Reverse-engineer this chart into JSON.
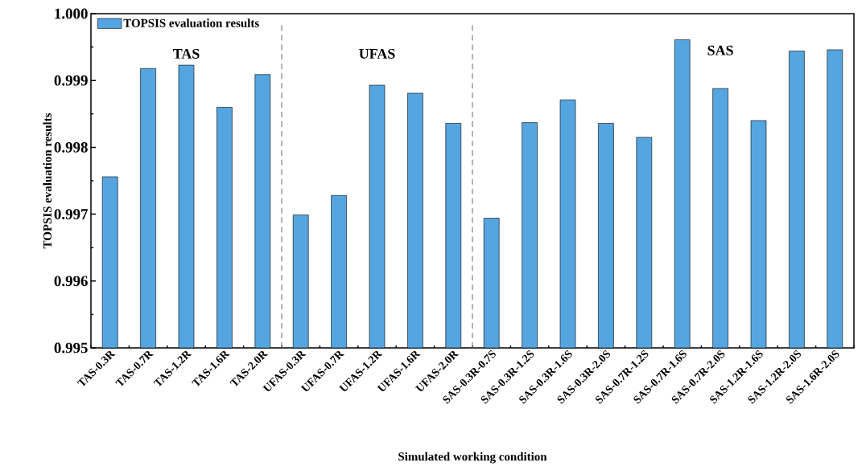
{
  "chart_data": {
    "type": "bar",
    "xlabel": "Simulated working condition",
    "ylabel": "TOPSIS evaluation results",
    "categories": [
      "TAS-0.3R",
      "TAS-0.7R",
      "TAS-1.2R",
      "TAS-1.6R",
      "TAS-2.0R",
      "UFAS-0.3R",
      "UFAS-0.7R",
      "UFAS-1.2R",
      "UFAS-1.6R",
      "UFAS-2.0R",
      "SAS-0.3R-0.7S",
      "SAS-0.3R-1.2S",
      "SAS-0.3R-1.6S",
      "SAS-0.3R-2.0S",
      "SAS-0.7R-1.2S",
      "SAS-0.7R-1.6S",
      "SAS-0.7R-2.0S",
      "SAS-1.2R-1.6S",
      "SAS-1.2R-2.0S",
      "SAS-1.6R-2.0S"
    ],
    "series": [
      {
        "name": "TOPSIS evaluation results",
        "color": "#55a6e0",
        "values": [
          0.99756,
          0.99918,
          0.99923,
          0.9986,
          0.99909,
          0.99699,
          0.99728,
          0.99893,
          0.99881,
          0.99836,
          0.99694,
          0.99837,
          0.99871,
          0.99836,
          0.99815,
          0.99961,
          0.99888,
          0.9984,
          0.99944,
          0.99946
        ]
      }
    ],
    "ylim": [
      0.995,
      1.0
    ],
    "yticks": [
      0.995,
      0.996,
      0.997,
      0.998,
      0.999,
      {
        "value": 1.0,
        "label": "1.000"
      }
    ],
    "annotations": [
      "TAS",
      "UFAS",
      "SAS"
    ],
    "legend": "top left",
    "grid": false
  }
}
